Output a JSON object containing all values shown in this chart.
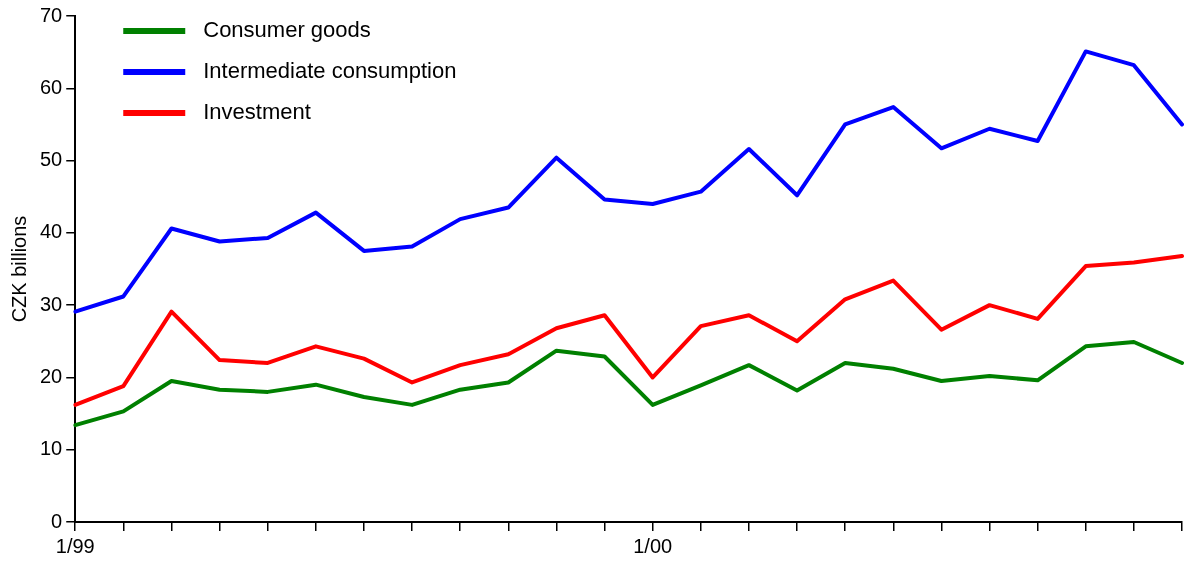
{
  "chart_data": {
    "type": "line",
    "ylabel": "CZK billions",
    "categories": [
      "1/99",
      null,
      null,
      null,
      null,
      null,
      null,
      null,
      null,
      null,
      null,
      null,
      "1/00",
      null,
      null,
      null,
      null,
      null,
      null,
      null,
      null,
      null,
      null,
      null
    ],
    "series": [
      {
        "name": "Consumer goods",
        "color": "#008000",
        "values": [
          13.4,
          15.3,
          19.5,
          18.3,
          18.0,
          19.0,
          17.3,
          16.2,
          18.3,
          19.3,
          23.7,
          22.9,
          16.2,
          18.9,
          21.7,
          18.2,
          22.0,
          21.2,
          19.5,
          20.2,
          19.6,
          24.3,
          24.9,
          22.0
        ]
      },
      {
        "name": "Intermediate consumption",
        "color": "#0000ff",
        "values": [
          29.1,
          31.2,
          40.6,
          38.8,
          39.3,
          42.8,
          37.5,
          38.1,
          41.9,
          43.5,
          50.4,
          44.6,
          44.0,
          45.7,
          51.6,
          45.2,
          55.0,
          57.4,
          51.7,
          54.4,
          52.7,
          65.1,
          63.2,
          55.0
        ]
      },
      {
        "name": "Investment",
        "color": "#ff0000",
        "values": [
          16.2,
          18.8,
          29.1,
          22.4,
          22.0,
          24.3,
          22.6,
          19.3,
          21.7,
          23.2,
          26.8,
          28.6,
          20.0,
          27.1,
          28.6,
          25.0,
          30.8,
          33.4,
          26.6,
          30.0,
          28.1,
          35.4,
          35.9,
          36.8
        ]
      }
    ],
    "ylim": [
      0,
      70
    ],
    "yticks": [
      0,
      10,
      20,
      30,
      40,
      50,
      60,
      70
    ],
    "grid": false,
    "legend": "top left",
    "marker": "none",
    "line_style": "solid"
  }
}
